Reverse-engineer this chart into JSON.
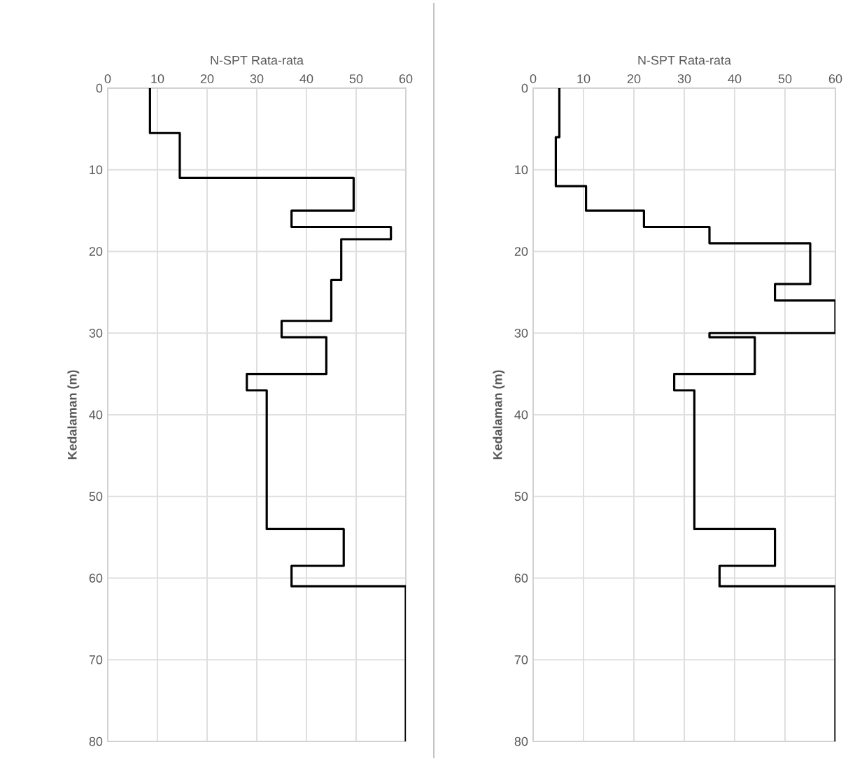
{
  "chart_data": [
    {
      "type": "line",
      "xlabel": "N-SPT Rata-rata",
      "ylabel": "Kedalaman (m)",
      "xlim": [
        0,
        60
      ],
      "xticks": [
        0,
        10,
        20,
        30,
        40,
        50,
        60
      ],
      "ylim": [
        80,
        0
      ],
      "yticks": [
        0,
        10,
        20,
        30,
        40,
        50,
        60,
        70,
        80
      ],
      "grid": true,
      "series": [
        {
          "color": "#000000",
          "x": [
            8.5,
            8.5,
            14.5,
            14.5,
            49.5,
            49.5,
            37,
            37,
            57,
            57,
            47,
            47,
            45,
            45,
            35,
            35,
            44,
            44,
            28,
            28,
            32,
            32,
            47.5,
            47.5,
            37,
            37,
            60,
            60
          ],
          "values": [
            0,
            5.5,
            5.5,
            11,
            11,
            15,
            15,
            17,
            17,
            18.5,
            18.5,
            23.5,
            23.5,
            28.5,
            28.5,
            30.5,
            30.5,
            35,
            35,
            37,
            37,
            54,
            54,
            58.5,
            58.5,
            61,
            61,
            80
          ]
        }
      ]
    },
    {
      "type": "line",
      "xlabel": "N-SPT Rata-rata",
      "ylabel": "Kedalaman (m)",
      "xlim": [
        0,
        60
      ],
      "xticks": [
        0,
        10,
        20,
        30,
        40,
        50,
        60
      ],
      "ylim": [
        80,
        0
      ],
      "yticks": [
        0,
        10,
        20,
        30,
        40,
        50,
        60,
        70,
        80
      ],
      "grid": true,
      "series": [
        {
          "color": "#000000",
          "x": [
            5.2,
            5.2,
            4.5,
            4.5,
            10.5,
            10.5,
            22,
            22,
            35,
            35,
            55,
            55,
            48,
            48,
            60,
            60,
            35,
            35,
            44,
            44,
            28,
            28,
            32,
            32,
            48,
            48,
            37,
            37,
            60,
            60
          ],
          "values": [
            0,
            6,
            6,
            12,
            12,
            15,
            15,
            17,
            17,
            19,
            19,
            24,
            24,
            26,
            26,
            30,
            30,
            30.5,
            30.5,
            35,
            35,
            37,
            37,
            54,
            54,
            58.5,
            58.5,
            61,
            61,
            80
          ]
        }
      ]
    }
  ]
}
